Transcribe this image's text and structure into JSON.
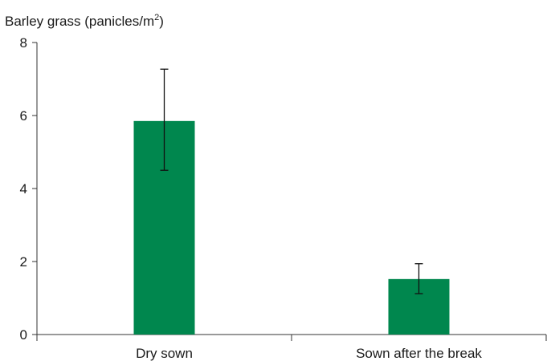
{
  "chart_data": {
    "type": "bar",
    "ylabel": "Barley grass (panicles/m",
    "ylabel_superscript": "2",
    "ylabel_close": ")",
    "categories": [
      "Dry sown",
      "Sown after the break"
    ],
    "values": [
      5.85,
      1.52
    ],
    "error_high": [
      7.27,
      1.94
    ],
    "error_low": [
      4.5,
      1.12
    ],
    "ylim": [
      0,
      8
    ],
    "yticks": [
      0,
      2,
      4,
      6,
      8
    ],
    "grid": false,
    "bar_color": "#00874e",
    "axis_color": "#333333"
  }
}
